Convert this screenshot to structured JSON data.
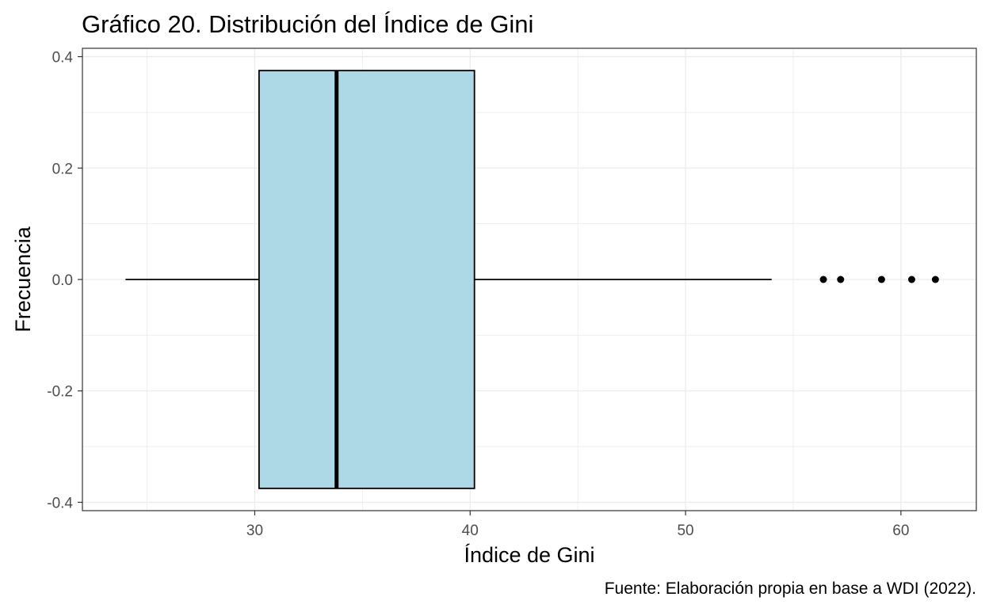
{
  "chart_data": {
    "type": "boxplot",
    "orientation": "horizontal",
    "title": "Gráfico 20. Distribución del Índice de Gini",
    "xlabel": "Índice de Gini",
    "ylabel": "Frecuencia",
    "caption": "Fuente: Elaboración propia en base a WDI (2022).",
    "xlim": [
      22.0,
      63.5
    ],
    "ylim": [
      -0.415,
      0.415
    ],
    "x_ticks": [
      30,
      40,
      50,
      60
    ],
    "x_tick_labels": [
      "30",
      "40",
      "50",
      "60"
    ],
    "y_ticks": [
      0.4,
      0.2,
      0.0,
      -0.2,
      -0.4
    ],
    "y_tick_labels": [
      "0.4",
      "0.2",
      "0.0",
      "-0.2",
      "-0.4"
    ],
    "grid": true,
    "box": {
      "whisker_low": 24.0,
      "q1": 30.2,
      "median": 33.8,
      "q3": 40.2,
      "whisker_high": 54.0,
      "y_center": 0.0,
      "y_half_width": 0.375,
      "fill": "#add8e6"
    },
    "outliers": [
      56.4,
      57.2,
      59.1,
      60.5,
      61.6
    ]
  }
}
